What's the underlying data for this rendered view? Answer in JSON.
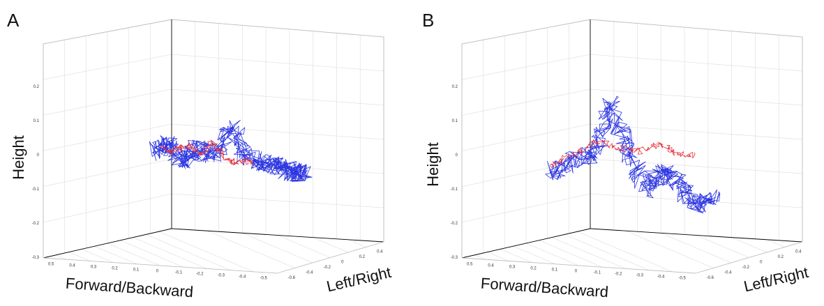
{
  "colors": {
    "series_red": "#e8303a",
    "series_blue": "#2b35e0",
    "grid": "#e4e4e4",
    "box": "#000000"
  },
  "chart_data": [
    {
      "type": "line",
      "panel_label": "A",
      "ylabel": "Height",
      "xlabel": "Forward/Backward",
      "zlabel": "Left/Right",
      "yticks": [
        "0.2",
        "0.1",
        "0",
        "-0.1",
        "-0.2",
        "-0.3"
      ],
      "xticks": [
        "0.5",
        "0.4",
        "0.3",
        "0.2",
        "0.1",
        "0",
        "-0.1",
        "-0.2",
        "-0.3",
        "-0.4",
        "-0.5"
      ],
      "zticks": [
        "-0.6",
        "-0.4",
        "-0.2",
        "0",
        "0.2",
        "0.4"
      ],
      "grid": true,
      "series": [
        {
          "color": "blue",
          "x": [
            0.25,
            0.18,
            0.12,
            0.05,
            -0.02,
            -0.1,
            -0.18,
            -0.26,
            -0.32,
            -0.38,
            -0.42
          ],
          "y": [
            0.01,
            0.03,
            -0.02,
            0.02,
            0.0,
            0.08,
            -0.01,
            -0.03,
            -0.04,
            -0.05,
            -0.05
          ]
        },
        {
          "color": "red",
          "x": [
            0.22,
            0.15,
            0.1,
            0.04,
            -0.02,
            -0.08,
            -0.14,
            -0.2
          ],
          "y": [
            0.02,
            0.01,
            0.03,
            0.0,
            0.04,
            -0.02,
            -0.02,
            -0.02
          ]
        }
      ]
    },
    {
      "type": "line",
      "panel_label": "B",
      "ylabel": "Height",
      "xlabel": "Forward/Backward",
      "zlabel": "Left/Right",
      "yticks": [
        "0.2",
        "0.1",
        "0",
        "-0.1",
        "-0.2",
        "-0.3"
      ],
      "xticks": [
        "0.5",
        "0.4",
        "0.3",
        "0.2",
        "0.1",
        "0",
        "-0.1",
        "-0.2",
        "-0.3",
        "-0.4",
        "-0.5"
      ],
      "zticks": [
        "-0.6",
        "-0.4",
        "-0.2",
        "0",
        "0.2",
        "0.4"
      ],
      "grid": true,
      "series": [
        {
          "color": "blue",
          "x": [
            0.35,
            0.25,
            0.15,
            0.08,
            0.0,
            -0.08,
            -0.15,
            -0.22,
            -0.3,
            -0.38
          ],
          "y": [
            -0.05,
            -0.02,
            0.0,
            0.15,
            0.02,
            -0.1,
            -0.05,
            -0.08,
            -0.15,
            -0.12
          ]
        },
        {
          "color": "red",
          "x": [
            0.35,
            0.25,
            0.15,
            0.05,
            -0.05,
            -0.15,
            -0.22,
            -0.3
          ],
          "y": [
            -0.03,
            0.0,
            0.04,
            0.02,
            0.01,
            0.03,
            0.0,
            0.0
          ]
        }
      ]
    }
  ]
}
